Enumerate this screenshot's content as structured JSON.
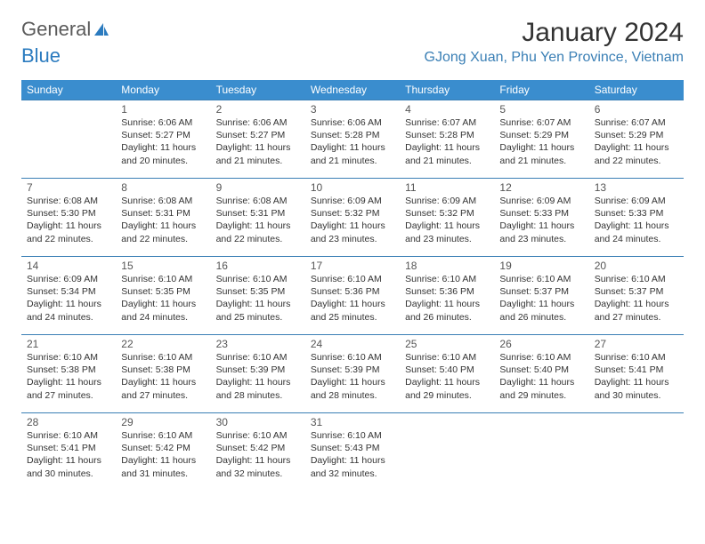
{
  "brand": {
    "part1": "General",
    "part2": "Blue"
  },
  "title": "January 2024",
  "location": "GJong Xuan, Phu Yen Province, Vietnam",
  "colors": {
    "header_bg": "#3a8dce",
    "header_text": "#ffffff",
    "row_border": "#3a7fb5",
    "location_text": "#3a7fb5",
    "logo_blue": "#2b7bbf",
    "body_text": "#333333",
    "background": "#ffffff"
  },
  "typography": {
    "title_fontsize": 30,
    "location_fontsize": 16,
    "dayhead_fontsize": 12,
    "daynum_fontsize": 12,
    "dayinfo_fontsize": 10.5
  },
  "day_headers": [
    "Sunday",
    "Monday",
    "Tuesday",
    "Wednesday",
    "Thursday",
    "Friday",
    "Saturday"
  ],
  "weeks": [
    [
      null,
      {
        "n": "1",
        "sr": "6:06 AM",
        "ss": "5:27 PM",
        "dl": "11 hours and 20 minutes."
      },
      {
        "n": "2",
        "sr": "6:06 AM",
        "ss": "5:27 PM",
        "dl": "11 hours and 21 minutes."
      },
      {
        "n": "3",
        "sr": "6:06 AM",
        "ss": "5:28 PM",
        "dl": "11 hours and 21 minutes."
      },
      {
        "n": "4",
        "sr": "6:07 AM",
        "ss": "5:28 PM",
        "dl": "11 hours and 21 minutes."
      },
      {
        "n": "5",
        "sr": "6:07 AM",
        "ss": "5:29 PM",
        "dl": "11 hours and 21 minutes."
      },
      {
        "n": "6",
        "sr": "6:07 AM",
        "ss": "5:29 PM",
        "dl": "11 hours and 22 minutes."
      }
    ],
    [
      {
        "n": "7",
        "sr": "6:08 AM",
        "ss": "5:30 PM",
        "dl": "11 hours and 22 minutes."
      },
      {
        "n": "8",
        "sr": "6:08 AM",
        "ss": "5:31 PM",
        "dl": "11 hours and 22 minutes."
      },
      {
        "n": "9",
        "sr": "6:08 AM",
        "ss": "5:31 PM",
        "dl": "11 hours and 22 minutes."
      },
      {
        "n": "10",
        "sr": "6:09 AM",
        "ss": "5:32 PM",
        "dl": "11 hours and 23 minutes."
      },
      {
        "n": "11",
        "sr": "6:09 AM",
        "ss": "5:32 PM",
        "dl": "11 hours and 23 minutes."
      },
      {
        "n": "12",
        "sr": "6:09 AM",
        "ss": "5:33 PM",
        "dl": "11 hours and 23 minutes."
      },
      {
        "n": "13",
        "sr": "6:09 AM",
        "ss": "5:33 PM",
        "dl": "11 hours and 24 minutes."
      }
    ],
    [
      {
        "n": "14",
        "sr": "6:09 AM",
        "ss": "5:34 PM",
        "dl": "11 hours and 24 minutes."
      },
      {
        "n": "15",
        "sr": "6:10 AM",
        "ss": "5:35 PM",
        "dl": "11 hours and 24 minutes."
      },
      {
        "n": "16",
        "sr": "6:10 AM",
        "ss": "5:35 PM",
        "dl": "11 hours and 25 minutes."
      },
      {
        "n": "17",
        "sr": "6:10 AM",
        "ss": "5:36 PM",
        "dl": "11 hours and 25 minutes."
      },
      {
        "n": "18",
        "sr": "6:10 AM",
        "ss": "5:36 PM",
        "dl": "11 hours and 26 minutes."
      },
      {
        "n": "19",
        "sr": "6:10 AM",
        "ss": "5:37 PM",
        "dl": "11 hours and 26 minutes."
      },
      {
        "n": "20",
        "sr": "6:10 AM",
        "ss": "5:37 PM",
        "dl": "11 hours and 27 minutes."
      }
    ],
    [
      {
        "n": "21",
        "sr": "6:10 AM",
        "ss": "5:38 PM",
        "dl": "11 hours and 27 minutes."
      },
      {
        "n": "22",
        "sr": "6:10 AM",
        "ss": "5:38 PM",
        "dl": "11 hours and 27 minutes."
      },
      {
        "n": "23",
        "sr": "6:10 AM",
        "ss": "5:39 PM",
        "dl": "11 hours and 28 minutes."
      },
      {
        "n": "24",
        "sr": "6:10 AM",
        "ss": "5:39 PM",
        "dl": "11 hours and 28 minutes."
      },
      {
        "n": "25",
        "sr": "6:10 AM",
        "ss": "5:40 PM",
        "dl": "11 hours and 29 minutes."
      },
      {
        "n": "26",
        "sr": "6:10 AM",
        "ss": "5:40 PM",
        "dl": "11 hours and 29 minutes."
      },
      {
        "n": "27",
        "sr": "6:10 AM",
        "ss": "5:41 PM",
        "dl": "11 hours and 30 minutes."
      }
    ],
    [
      {
        "n": "28",
        "sr": "6:10 AM",
        "ss": "5:41 PM",
        "dl": "11 hours and 30 minutes."
      },
      {
        "n": "29",
        "sr": "6:10 AM",
        "ss": "5:42 PM",
        "dl": "11 hours and 31 minutes."
      },
      {
        "n": "30",
        "sr": "6:10 AM",
        "ss": "5:42 PM",
        "dl": "11 hours and 32 minutes."
      },
      {
        "n": "31",
        "sr": "6:10 AM",
        "ss": "5:43 PM",
        "dl": "11 hours and 32 minutes."
      },
      null,
      null,
      null
    ]
  ],
  "labels": {
    "sunrise": "Sunrise:",
    "sunset": "Sunset:",
    "daylight": "Daylight:"
  }
}
